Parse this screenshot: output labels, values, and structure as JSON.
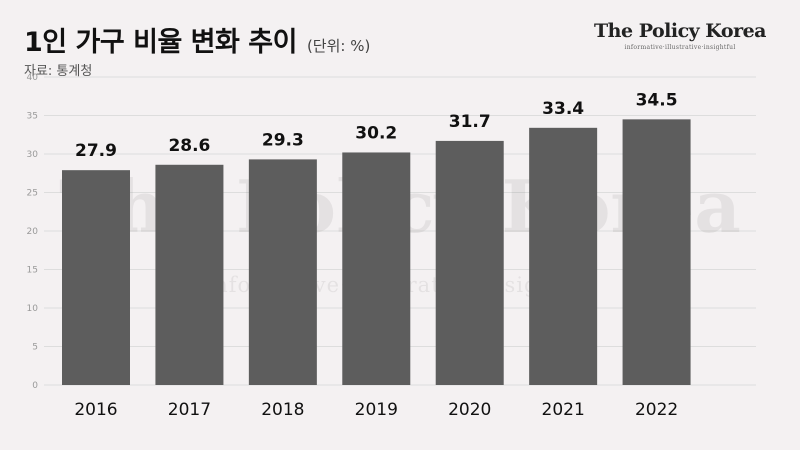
{
  "header": {
    "title": "1인 가구 비율 변화 추이",
    "unit": "(단위: %)",
    "source": "자료: 통계청"
  },
  "logo": {
    "name": "The Policy Korea",
    "tagline": "informative·illustrative·insightful"
  },
  "colors": {
    "background": "#f4f1f2",
    "bar": "#5d5d5d",
    "grid": "#dddddd"
  },
  "chart_data": {
    "type": "bar",
    "categories": [
      "2016",
      "2017",
      "2018",
      "2019",
      "2020",
      "2021",
      "2022"
    ],
    "values": [
      27.9,
      28.6,
      29.3,
      30.2,
      31.7,
      33.4,
      34.5
    ],
    "value_labels": [
      "27.9",
      "28.6",
      "29.3",
      "30.2",
      "31.7",
      "33.4",
      "34.5"
    ],
    "ylim": [
      0,
      40
    ],
    "yticks": [
      0,
      5,
      10,
      15,
      20,
      25,
      30,
      35,
      40
    ],
    "grid": true,
    "legend": "none"
  }
}
